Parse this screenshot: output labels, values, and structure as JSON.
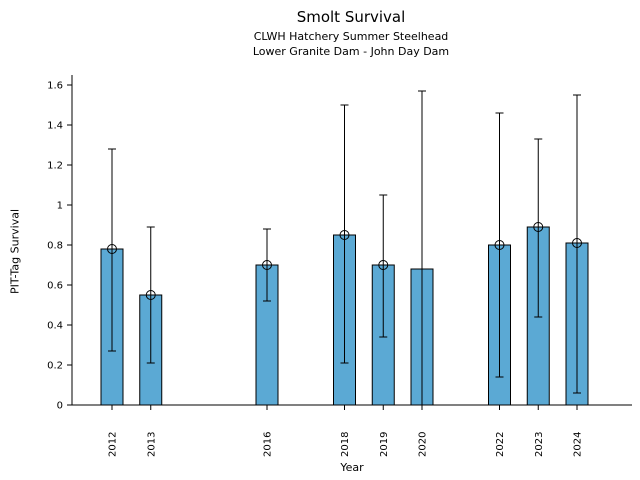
{
  "chart_data": {
    "type": "bar",
    "title": "Smolt Survival",
    "subtitle1": "CLWH Hatchery Summer Steelhead",
    "subtitle2": "Lower Granite Dam - John Day Dam",
    "xlabel": "Year",
    "ylabel": "PIT-Tag Survival",
    "ylim": [
      0,
      1.65
    ],
    "yticks": [
      0,
      0.2,
      0.4,
      0.6,
      0.8,
      1,
      1.2,
      1.4,
      1.6
    ],
    "grid": false,
    "legend": "none",
    "bar_color": "#5BA9D4",
    "bar_edge_color": "#000000",
    "error_color": "#000000",
    "x_tick_rotation_degrees": 90,
    "missing_years": [
      "2014",
      "2015",
      "2017",
      "2021"
    ],
    "bars": [
      {
        "year": "2012",
        "value": 0.78,
        "ci_low": 0.27,
        "ci_high": 1.28,
        "marker": true
      },
      {
        "year": "2013",
        "value": 0.55,
        "ci_low": 0.21,
        "ci_high": 0.89,
        "marker": true
      },
      {
        "year": "2016",
        "value": 0.7,
        "ci_low": 0.52,
        "ci_high": 0.88,
        "marker": true
      },
      {
        "year": "2018",
        "value": 0.85,
        "ci_low": 0.21,
        "ci_high": 1.5,
        "marker": true
      },
      {
        "year": "2019",
        "value": 0.7,
        "ci_low": 0.34,
        "ci_high": 1.05,
        "marker": true
      },
      {
        "year": "2020",
        "value": 0.68,
        "ci_low": 0.0,
        "ci_high": 1.57,
        "marker": false
      },
      {
        "year": "2022",
        "value": 0.8,
        "ci_low": 0.14,
        "ci_high": 1.46,
        "marker": true
      },
      {
        "year": "2023",
        "value": 0.89,
        "ci_low": 0.44,
        "ci_high": 1.33,
        "marker": true
      },
      {
        "year": "2024",
        "value": 0.81,
        "ci_low": 0.06,
        "ci_high": 1.55,
        "marker": true
      }
    ]
  }
}
